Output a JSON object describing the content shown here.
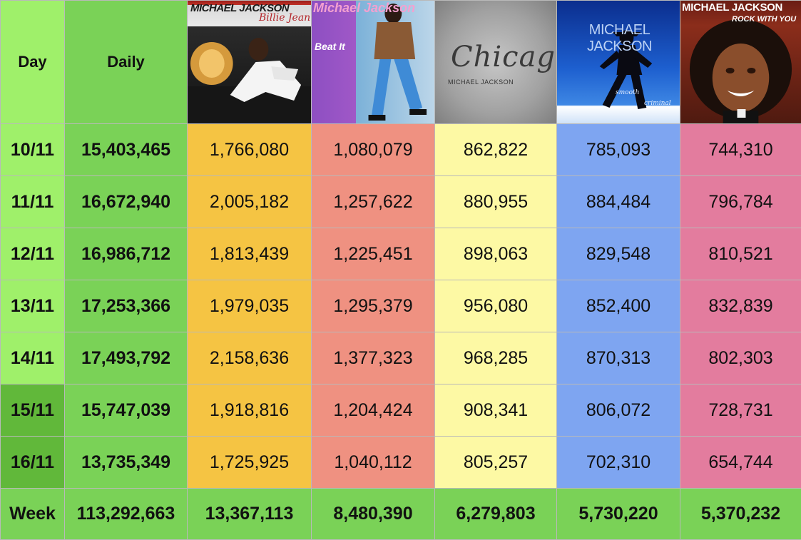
{
  "headers": {
    "day": "Day",
    "daily": "Daily"
  },
  "covers": [
    {
      "icon": "billie-jean-cover-icon",
      "text1": "MICHAEL JACKSON",
      "text2": "Billie Jean"
    },
    {
      "icon": "beat-it-cover-icon",
      "text1": "Michael Jackson",
      "text2": "Beat It"
    },
    {
      "icon": "chicago-cover-icon",
      "text1": "Chicago",
      "text2": "MICHAEL JACKSON"
    },
    {
      "icon": "smooth-criminal-cover-icon",
      "text1": "MICHAEL JACKSON",
      "text2": "smooth",
      "text3": "criminal"
    },
    {
      "icon": "rock-with-you-cover-icon",
      "text1": "MICHAEL JACKSON",
      "text2": "ROCK WITH YOU"
    }
  ],
  "rows": [
    {
      "day": "10/11",
      "daily": "15,403,465",
      "values": [
        "1,766,080",
        "1,080,079",
        "862,822",
        "785,093",
        "744,310"
      ]
    },
    {
      "day": "11/11",
      "daily": "16,672,940",
      "values": [
        "2,005,182",
        "1,257,622",
        "880,955",
        "884,484",
        "796,784"
      ]
    },
    {
      "day": "12/11",
      "daily": "16,986,712",
      "values": [
        "1,813,439",
        "1,225,451",
        "898,063",
        "829,548",
        "810,521"
      ]
    },
    {
      "day": "13/11",
      "daily": "17,253,366",
      "values": [
        "1,979,035",
        "1,295,379",
        "956,080",
        "852,400",
        "832,839"
      ]
    },
    {
      "day": "14/11",
      "daily": "17,493,792",
      "values": [
        "2,158,636",
        "1,377,323",
        "968,285",
        "870,313",
        "802,303"
      ]
    },
    {
      "day": "15/11",
      "daily": "15,747,039",
      "values": [
        "1,918,816",
        "1,204,424",
        "908,341",
        "806,072",
        "728,731"
      ]
    },
    {
      "day": "16/11",
      "daily": "13,735,349",
      "values": [
        "1,725,925",
        "1,040,112",
        "805,257",
        "702,310",
        "654,744"
      ]
    }
  ],
  "week": {
    "label": "Week",
    "daily": "113,292,663",
    "values": [
      "13,367,113",
      "8,480,390",
      "6,279,803",
      "5,730,220",
      "5,370,232"
    ]
  },
  "colors": {
    "day": "#9ff06a",
    "day_weekend": "#61b83a",
    "daily": "#7ad257",
    "song1": "#f5c443",
    "song2": "#ef9181",
    "song3": "#fdf9a4",
    "song4": "#7ea5f1",
    "song5": "#e37c9e"
  }
}
